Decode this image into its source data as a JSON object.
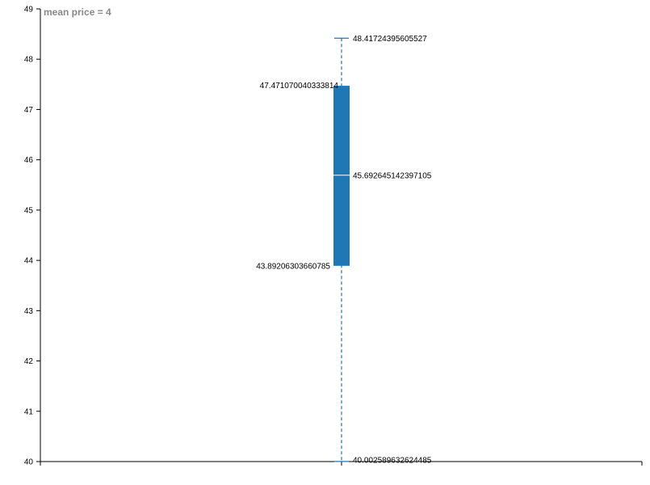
{
  "chart_data": {
    "type": "boxplot",
    "title": "mean price = 4",
    "xlabel": "",
    "ylabel": "",
    "ylim": [
      40,
      49
    ],
    "yticks": [
      40,
      41,
      42,
      43,
      44,
      45,
      46,
      47,
      48,
      49
    ],
    "boxes": [
      {
        "min": 40.002589632624485,
        "q1": 43.89206303660785,
        "median": 45.692645142397105,
        "q3": 47.471070040333814,
        "max": 48.41724395605527,
        "labels": {
          "min": "40.002589632624485",
          "q1": "43.89206303660785",
          "median": "45.692645142397105",
          "q3": "47.471070040333814",
          "max": "48.41724395605527"
        }
      }
    ],
    "colors": {
      "box": "#1f77b4",
      "whisker": "#1f77b4",
      "median": "#ffffff",
      "axis": "#000000",
      "title": "#888888"
    }
  }
}
